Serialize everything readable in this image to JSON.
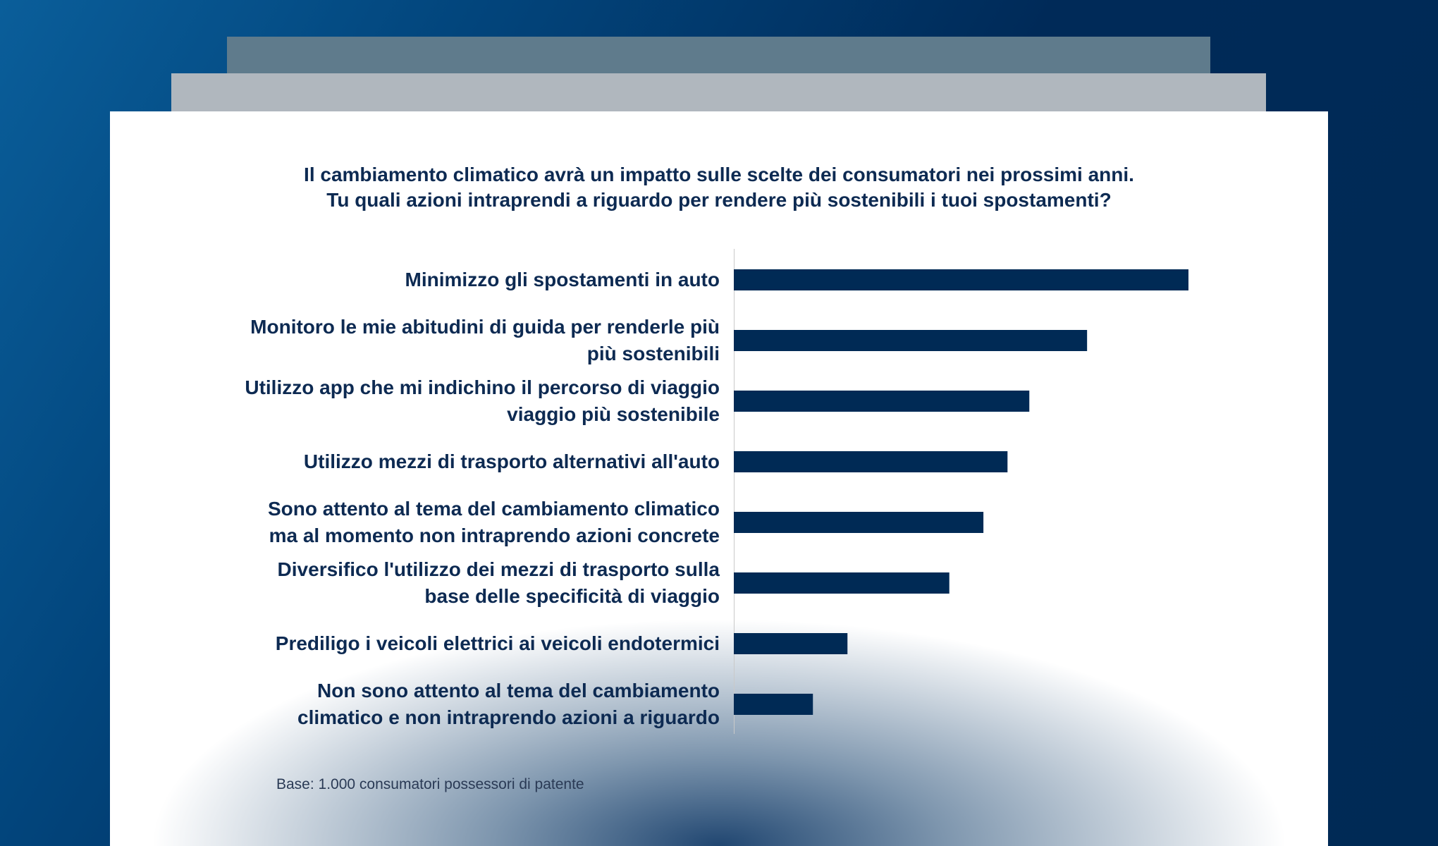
{
  "title_lines": [
    "Il cambiamento climatico avrà un impatto sulle scelte dei consumatori nei prossimi anni.",
    "Tu quali azioni intraprendi a riguardo per rendere più sostenibili i tuoi spostamenti?"
  ],
  "footnote": "Base: 1.000 consumatori possessori di patente",
  "colors": {
    "bar": "#002a55",
    "text": "#0d2a52",
    "background": "#002a55"
  },
  "chart_data": {
    "type": "bar",
    "orientation": "horizontal",
    "title": "Il cambiamento climatico avrà un impatto sulle scelte dei consumatori nei prossimi anni. Tu quali azioni intraprendi a riguardo per rendere più sostenibili i tuoi spostamenti?",
    "categories": [
      [
        "Minimizzo gli spostamenti in auto"
      ],
      [
        "Monitoro le mie abitudini di guida per renderle più",
        "più sostenibili"
      ],
      [
        "Utilizzo app che mi indichino il percorso di viaggio",
        "viaggio più sostenibile"
      ],
      [
        "Utilizzo mezzi di trasporto alternativi all'auto"
      ],
      [
        "Sono attento al tema del cambiamento climatico",
        "ma al momento non intraprendo azioni concrete"
      ],
      [
        "Diversifico l'utilizzo dei mezzi di trasporto sulla",
        "base delle specificità di viaggio"
      ],
      [
        "Prediligo i veicoli elettrici ai veicoli endotermici"
      ],
      [
        "Non sono attento al tema del cambiamento",
        "climatico e non intraprendo azioni a riguardo"
      ]
    ],
    "values": [
      100,
      77.7,
      65,
      60.2,
      54.9,
      47.4,
      25,
      17.4
    ],
    "value_note": "relative lengths (longest = 100); no axis values printed",
    "grid": false,
    "xlabel": "",
    "ylabel": ""
  }
}
